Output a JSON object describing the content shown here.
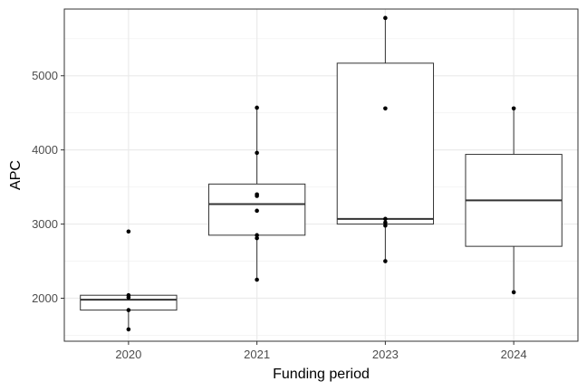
{
  "chart_data": {
    "type": "boxplot",
    "title": "",
    "xlabel": "Funding period",
    "ylabel": "APC",
    "categories": [
      "2020",
      "2021",
      "2023",
      "2024"
    ],
    "yticks": [
      2000,
      3000,
      4000,
      5000
    ],
    "ylim": [
      1420,
      5900
    ],
    "grid": true,
    "boxes": [
      {
        "category": "2020",
        "min": 1580,
        "q1": 1840,
        "median": 1980,
        "q3": 2040,
        "max": 2040
      },
      {
        "category": "2021",
        "min": 2250,
        "q1": 2850,
        "median": 3270,
        "q3": 3540,
        "max": 4570
      },
      {
        "category": "2023",
        "min": 2500,
        "q1": 3000,
        "median": 3070,
        "q3": 5170,
        "max": 5780
      },
      {
        "category": "2024",
        "min": 2080,
        "q1": 2700,
        "median": 3320,
        "q3": 3940,
        "max": 4560
      }
    ],
    "points": [
      {
        "category": "2020",
        "values": [
          2900,
          2040,
          2010,
          1840,
          1580
        ]
      },
      {
        "category": "2021",
        "values": [
          4570,
          3960,
          3400,
          3380,
          3180,
          2850,
          2810,
          2250
        ]
      },
      {
        "category": "2023",
        "values": [
          5780,
          4560,
          3070,
          3020,
          2980,
          2500
        ]
      },
      {
        "category": "2024",
        "values": [
          4560,
          2080
        ]
      }
    ]
  }
}
